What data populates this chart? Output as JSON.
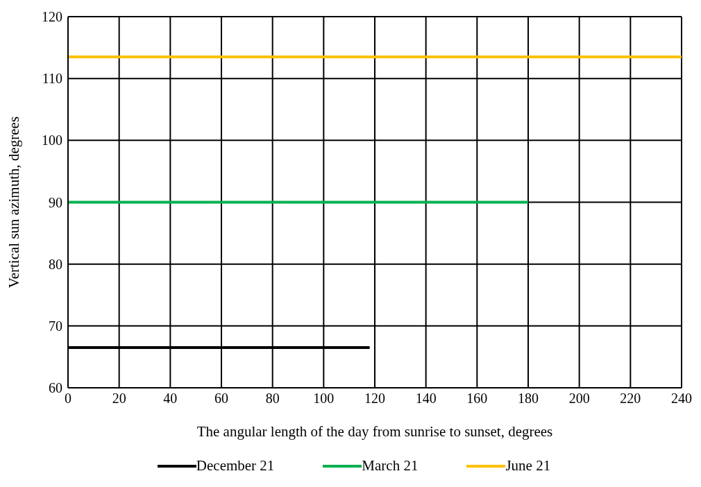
{
  "chart_data": {
    "type": "line",
    "xlabel": "The angular length of the day from sunrise to sunset, degrees",
    "ylabel": "Vertical sun azimuth, degrees",
    "xlim": [
      0,
      240
    ],
    "xticks": [
      0,
      20,
      40,
      60,
      80,
      100,
      120,
      140,
      160,
      180,
      200,
      220,
      240
    ],
    "ylim": [
      60,
      120
    ],
    "yticks": [
      60,
      70,
      80,
      90,
      100,
      110,
      120
    ],
    "grid": true,
    "legend": "bottom",
    "marker": "none",
    "line_style": "solid",
    "series": [
      {
        "name": "December 21",
        "color": "#000000",
        "x": [
          0,
          118
        ],
        "values": [
          66.5,
          66.5
        ]
      },
      {
        "name": "March 21",
        "color": "#00b050",
        "x": [
          0,
          180
        ],
        "values": [
          90,
          90
        ]
      },
      {
        "name": "June 21",
        "color": "#ffc000",
        "x": [
          0,
          240
        ],
        "values": [
          113.5,
          113.5
        ]
      }
    ]
  }
}
